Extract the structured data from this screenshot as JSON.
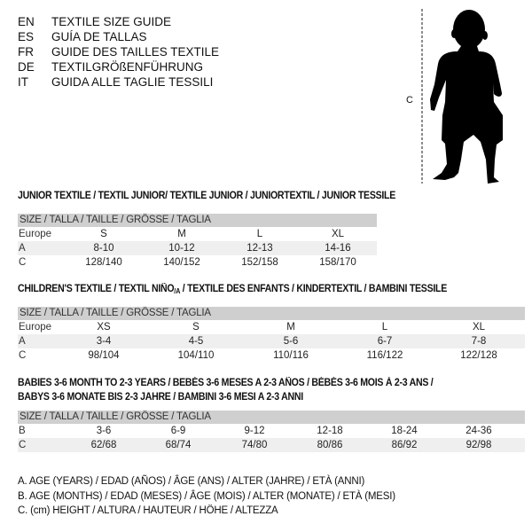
{
  "languages": [
    {
      "code": "EN",
      "title": "TEXTILE SIZE GUIDE"
    },
    {
      "code": "ES",
      "title": "GUÍA DE TALLAS"
    },
    {
      "code": "FR",
      "title": "GUIDE DES TAILLES TEXTILE"
    },
    {
      "code": "DE",
      "title": "TEXTILGRÖßENFÜHRUNG"
    },
    {
      "code": "IT",
      "title": "GUIDA ALLE TAGLIE TESSILI"
    }
  ],
  "figure": {
    "height_label": "C",
    "icon": "child-silhouette"
  },
  "size_header": "SIZE / TALLA / TAILLE / GRÖSSE / TAGLIA",
  "junior": {
    "title": "JUNIOR TEXTILE / TEXTIL JUNIOR/ TEXTILE JUNIOR / JUNIORTEXTIL / JUNIOR TESSILE",
    "rows": [
      {
        "label": "Europe",
        "values": [
          "S",
          "M",
          "L",
          "XL"
        ]
      },
      {
        "label": "A",
        "values": [
          "8-10",
          "10-12",
          "12-13",
          "14-16"
        ]
      },
      {
        "label": "C",
        "values": [
          "128/140",
          "140/152",
          "152/158",
          "158/170"
        ]
      }
    ]
  },
  "children": {
    "title_a": "CHILDREN'S TEXTILE / TEXTIL NIÑO",
    "title_sub": "/A",
    "title_b": " / TEXTILE DES ENFANTS / KINDERTEXTIL / BAMBINI TESSILE",
    "rows": [
      {
        "label": "Europe",
        "values": [
          "XS",
          "S",
          "M",
          "L",
          "XL"
        ]
      },
      {
        "label": "A",
        "values": [
          "3-4",
          "4-5",
          "5-6",
          "6-7",
          "7-8"
        ]
      },
      {
        "label": "C",
        "values": [
          "98/104",
          "104/110",
          "110/116",
          "116/122",
          "122/128"
        ]
      }
    ]
  },
  "babies": {
    "title_line1": "BABIES 3-6 MONTH TO 2-3 YEARS / BEBÉS 3-6 MESES A 2-3 AÑOS / BÉBÉS 3-6 MOIS À 2-3 ANS /",
    "title_line2": "BABYS 3-6 MONATE BIS 2-3 JAHRE / BAMBINI 3-6 MESI A 2-3 ANNI",
    "rows": [
      {
        "label": "B",
        "values": [
          "3-6",
          "6-9",
          "9-12",
          "12-18",
          "18-24",
          "24-36"
        ]
      },
      {
        "label": "C",
        "values": [
          "62/68",
          "68/74",
          "74/80",
          "80/86",
          "86/92",
          "92/98"
        ]
      }
    ]
  },
  "legend": [
    "A. AGE (YEARS) / EDAD (AÑOS) / ÂGE (ANS) / ALTER (JAHRE) / ETÀ (ANNI)",
    "B. AGE (MONTHS) / EDAD (MESES) / ÂGE (MOIS) / ALTER (MONATE) / ETÀ (MESI)",
    "C. (cm) HEIGHT / ALTURA / HAUTEUR / HÖHE / ALTEZZA"
  ]
}
